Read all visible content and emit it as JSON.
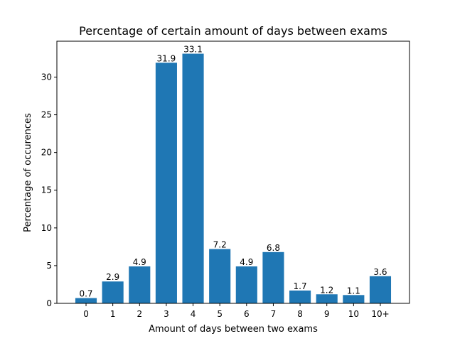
{
  "chart_data": {
    "type": "bar",
    "title": "Percentage of certain amount of days between exams",
    "xlabel": "Amount of days between two exams",
    "ylabel": "Percentage of occurences",
    "categories": [
      "0",
      "1",
      "2",
      "3",
      "4",
      "5",
      "6",
      "7",
      "8",
      "9",
      "10",
      "10+"
    ],
    "values": [
      0.7,
      2.9,
      4.9,
      31.9,
      33.1,
      7.2,
      4.9,
      6.8,
      1.7,
      1.2,
      1.1,
      3.6
    ],
    "data_labels": [
      "0.7",
      "2.9",
      "4.9",
      "31.9",
      "33.1",
      "7.2",
      "4.9",
      "6.8",
      "1.7",
      "1.2",
      "1.1",
      "3.6"
    ],
    "ylim": [
      0,
      34.755
    ],
    "yticks": [
      0,
      5,
      10,
      15,
      20,
      25,
      30
    ],
    "ytick_labels": [
      "0",
      "5",
      "10",
      "15",
      "20",
      "25",
      "30"
    ],
    "grid": false,
    "bar_color": "#1f77b4"
  }
}
